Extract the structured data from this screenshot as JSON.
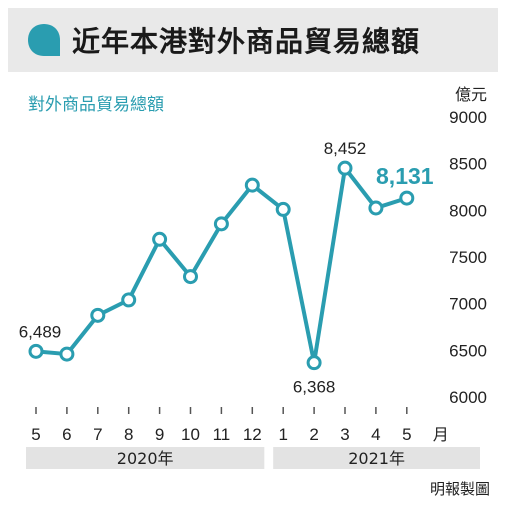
{
  "header": {
    "title": "近年本港對外商品貿易總額"
  },
  "credit": "明報製圖",
  "chart_data": {
    "type": "line",
    "title": "對外商品貿易總額",
    "unit": "億元",
    "x_unit": "月",
    "x": [
      "5",
      "6",
      "7",
      "8",
      "9",
      "10",
      "11",
      "12",
      "1",
      "2",
      "3",
      "4",
      "5"
    ],
    "year_groups": [
      {
        "label": "2020年",
        "months": [
          "5",
          "6",
          "7",
          "8",
          "9",
          "10",
          "11",
          "12"
        ]
      },
      {
        "label": "2021年",
        "months": [
          "1",
          "2",
          "3",
          "4",
          "5"
        ]
      }
    ],
    "values": [
      6489,
      6460,
      6875,
      7040,
      7690,
      7290,
      7855,
      8270,
      8010,
      6368,
      8452,
      8025,
      8131
    ],
    "data_labels": [
      {
        "index": 0,
        "text": "6,489",
        "highlight": false
      },
      {
        "index": 9,
        "text": "6,368",
        "highlight": false
      },
      {
        "index": 10,
        "text": "8,452",
        "highlight": false
      },
      {
        "index": 12,
        "text": "8,131",
        "highlight": true
      }
    ],
    "ylim": [
      6000,
      9000
    ],
    "yticks": [
      6000,
      6500,
      7000,
      7500,
      8000,
      8500,
      9000
    ],
    "grid": false,
    "colors": {
      "line": "#2a9db0",
      "title": "#2a9db0",
      "highlight": "#2a9db0",
      "band": "#e3e3e3"
    }
  }
}
